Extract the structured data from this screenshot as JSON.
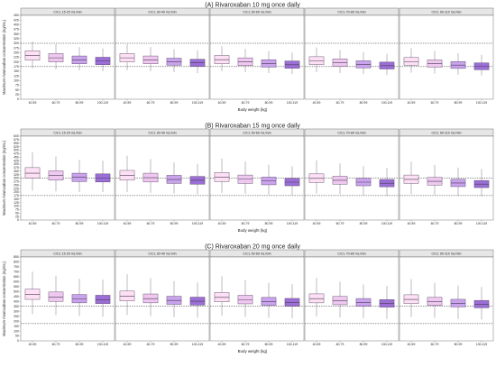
{
  "chart_data": [
    {
      "type": "boxplot",
      "title": "(A) Rivaroxaban 10 mg once daily",
      "xlabel": "Body weight (kg)",
      "ylabel": "Maximum rivaroxaban concentration (ng/mL)",
      "ylim": [
        0,
        450
      ],
      "yticks": [
        0,
        25,
        50,
        75,
        100,
        125,
        150,
        175,
        200,
        225,
        250,
        275,
        300,
        325,
        350,
        375,
        400,
        425,
        450
      ],
      "reference_lines": [
        175,
        300
      ],
      "categories": [
        "40-59",
        "60-79",
        "80-99",
        "100-119"
      ],
      "panels": [
        {
          "label": "CrCL 15-29 mL/min",
          "boxes": [
            [
              165,
              210,
              235,
              260,
              310
            ],
            [
              160,
              200,
              222,
              245,
              295
            ],
            [
              155,
              190,
              210,
              232,
              280
            ],
            [
              150,
              185,
              205,
              225,
              272
            ]
          ]
        },
        {
          "label": "CrCL 30-49 mL/min",
          "boxes": [
            [
              155,
              200,
              222,
              245,
              295
            ],
            [
              150,
              190,
              210,
              232,
              280
            ],
            [
              145,
              182,
              200,
              220,
              268
            ],
            [
              140,
              176,
              195,
              214,
              262
            ]
          ]
        },
        {
          "label": "CrCL 50-69 mL/min",
          "boxes": [
            [
              150,
              190,
              212,
              235,
              285
            ],
            [
              145,
              180,
              200,
              222,
              270
            ],
            [
              140,
              172,
              192,
              212,
              258
            ],
            [
              135,
              166,
              185,
              205,
              250
            ]
          ]
        },
        {
          "label": "CrCL 70-89 mL/min",
          "boxes": [
            [
              145,
              185,
              205,
              228,
              278
            ],
            [
              140,
              176,
              195,
              216,
              264
            ],
            [
              135,
              168,
              186,
              206,
              252
            ],
            [
              130,
              162,
              180,
              199,
              244
            ]
          ]
        },
        {
          "label": "CrCL 90-110 mL/min",
          "boxes": [
            [
              142,
              182,
              202,
              224,
              274
            ],
            [
              137,
              172,
              191,
              211,
              259
            ],
            [
              132,
              165,
              183,
              202,
              247
            ],
            [
              127,
              158,
              176,
              195,
              238
            ]
          ]
        }
      ]
    },
    {
      "type": "boxplot",
      "title": "(B) Rivaroxaban 15 mg once daily",
      "xlabel": "Body weight (kg)",
      "ylabel": "Maximum rivaroxaban concentration (ng/mL)",
      "ylim": [
        0,
        600
      ],
      "yticks": [
        0,
        25,
        50,
        75,
        100,
        125,
        150,
        175,
        200,
        225,
        250,
        275,
        300,
        325,
        350,
        375,
        400,
        425,
        450,
        475,
        500,
        525,
        550,
        575,
        600
      ],
      "reference_lines": [
        175,
        300
      ],
      "categories": [
        "40-59",
        "60-79",
        "80-99",
        "100-119"
      ],
      "panels": [
        {
          "label": "CrCL 15-29 mL/min",
          "boxes": [
            [
              210,
              300,
              335,
              375,
              485
            ],
            [
              205,
              285,
              318,
              352,
              455
            ],
            [
              200,
              275,
              305,
              335,
              430
            ],
            [
              200,
              272,
              300,
              330,
              425
            ]
          ]
        },
        {
          "label": "CrCL 30-49 mL/min",
          "boxes": [
            [
              200,
              285,
              320,
              355,
              460
            ],
            [
              195,
              272,
              303,
              335,
              435
            ],
            [
              190,
              262,
              290,
              320,
              412
            ],
            [
              185,
              256,
              284,
              312,
              402
            ]
          ]
        },
        {
          "label": "CrCL 50-69 mL/min",
          "boxes": [
            [
              195,
              275,
              306,
              340,
              440
            ],
            [
              188,
              262,
              292,
              322,
              418
            ],
            [
              182,
              252,
              279,
              307,
              396
            ],
            [
              178,
              245,
              271,
              298,
              384
            ]
          ]
        },
        {
          "label": "CrCL 70-89 mL/min",
          "boxes": [
            [
              190,
              268,
              298,
              330,
              428
            ],
            [
              184,
              256,
              284,
              313,
              405
            ],
            [
              178,
              245,
              271,
              298,
              385
            ],
            [
              172,
              238,
              263,
              290,
              373
            ]
          ]
        },
        {
          "label": "CrCL 90-110 mL/min",
          "boxes": [
            [
              186,
              262,
              291,
              322,
              417
            ],
            [
              180,
              250,
              277,
              305,
              395
            ],
            [
              174,
              239,
              265,
              291,
              375
            ],
            [
              168,
              232,
              257,
              283,
              364
            ]
          ]
        }
      ]
    },
    {
      "type": "boxplot",
      "title": "(C) Rivaroxaban 20 mg once daily",
      "xlabel": "Body weight (kg)",
      "ylabel": "Maximum rivaroxaban concentration (ng/mL)",
      "ylim": [
        0,
        850
      ],
      "yticks": [
        0,
        50,
        100,
        150,
        200,
        250,
        300,
        350,
        400,
        450,
        500,
        550,
        600,
        650,
        700,
        750,
        800,
        850
      ],
      "reference_lines": [
        175,
        350
      ],
      "categories": [
        "40-59",
        "60-79",
        "80-99",
        "100-119"
      ],
      "panels": [
        {
          "label": "CrCL 15-29 mL/min",
          "boxes": [
            [
              270,
              420,
              470,
              525,
              700
            ],
            [
              260,
              400,
              445,
              495,
              660
            ],
            [
              250,
              385,
              425,
              470,
              630
            ],
            [
              245,
              378,
              418,
              462,
              620
            ]
          ]
        },
        {
          "label": "CrCL 30-49 mL/min",
          "boxes": [
            [
              262,
              405,
              452,
              505,
              675
            ],
            [
              250,
              385,
              428,
              475,
              635
            ],
            [
              240,
              370,
              410,
              452,
              605
            ],
            [
              235,
              362,
              402,
              443,
              592
            ]
          ]
        },
        {
          "label": "CrCL 50-69 mL/min",
          "boxes": [
            [
              255,
              395,
              440,
              490,
              655
            ],
            [
              244,
              375,
              417,
              462,
              617
            ],
            [
              234,
              360,
              399,
              440,
              588
            ],
            [
              228,
              352,
              390,
              430,
              575
            ]
          ]
        },
        {
          "label": "CrCL 70-89 mL/min",
          "boxes": [
            [
              248,
              385,
              428,
              476,
              637
            ],
            [
              238,
              366,
              406,
              450,
              600
            ],
            [
              228,
              351,
              389,
              429,
              572
            ],
            [
              222,
              342,
              379,
              418,
              558
            ]
          ]
        },
        {
          "label": "CrCL 90-110 mL/min",
          "boxes": [
            [
              243,
              378,
              420,
              467,
              625
            ],
            [
              233,
              359,
              398,
              441,
              589
            ],
            [
              223,
              344,
              381,
              421,
              561
            ],
            [
              217,
              335,
              371,
              410,
              547
            ]
          ]
        }
      ]
    }
  ],
  "colors": {
    "box_fill": [
      "#fde0f3",
      "#efc8ef",
      "#c9a3ec",
      "#9b6fd6"
    ],
    "box_stroke": "#4a3a5a",
    "strip_fill": "#e6e6e6",
    "panel_border": "#555555",
    "ref_line": "#222222"
  }
}
